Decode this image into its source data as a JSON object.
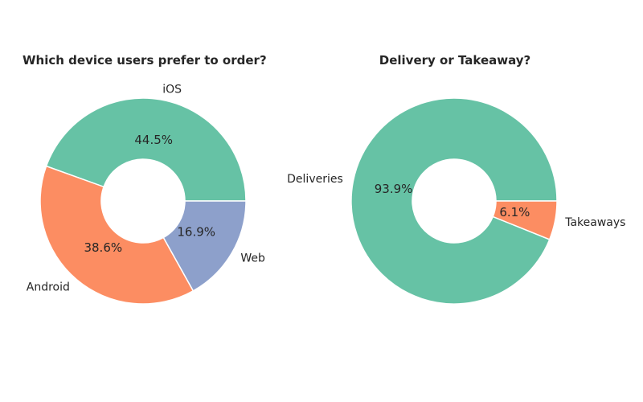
{
  "chart_data": [
    {
      "type": "pie",
      "title": "Which device users prefer to order?",
      "categories": [
        "iOS",
        "Android",
        "Web"
      ],
      "values": [
        44.5,
        38.6,
        16.9
      ],
      "value_labels": [
        "44.5%",
        "38.6%",
        "16.9%"
      ],
      "colors": [
        "#66c2a5",
        "#fc8d62",
        "#8da0cb"
      ],
      "donut": true
    },
    {
      "type": "pie",
      "title": "Delivery or Takeaway?",
      "categories": [
        "Deliveries",
        "Takeaways"
      ],
      "values": [
        93.9,
        6.1
      ],
      "value_labels": [
        "93.9%",
        "6.1%"
      ],
      "colors": [
        "#66c2a5",
        "#fc8d62"
      ],
      "donut": true
    }
  ]
}
